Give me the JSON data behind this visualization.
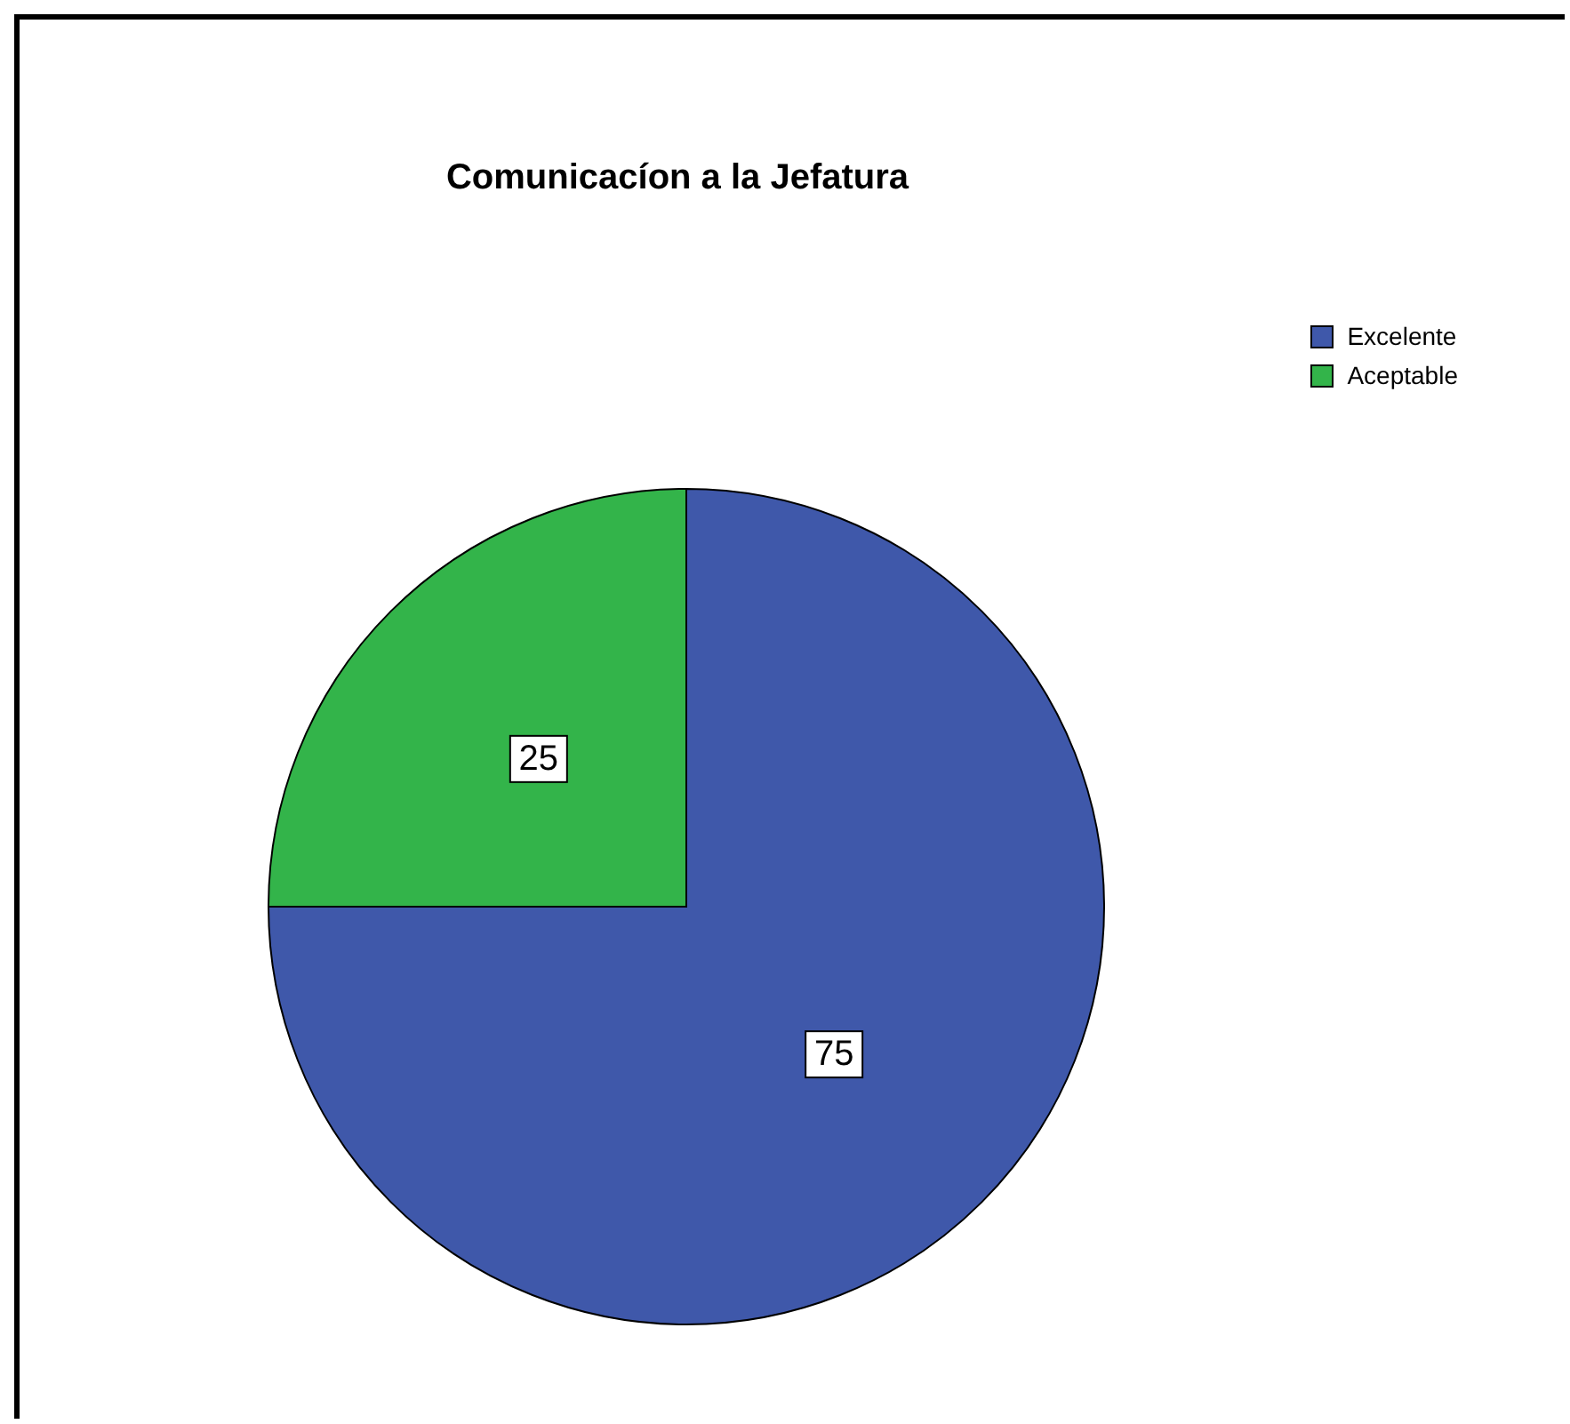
{
  "chart_data": {
    "type": "pie",
    "title": "Comunicacíon a la Jefatura",
    "categories": [
      "Excelente",
      "Aceptable"
    ],
    "values": [
      75,
      25
    ],
    "colors": [
      "#3f58aa",
      "#33b44a"
    ],
    "data_labels": true,
    "legend": "top right"
  }
}
